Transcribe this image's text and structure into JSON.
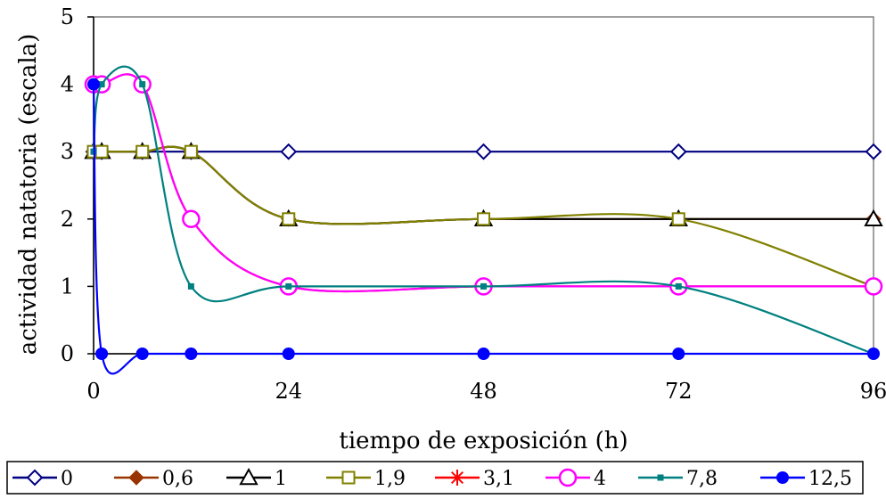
{
  "chart_data": {
    "type": "line",
    "title": "",
    "xlabel": "tiempo de exposición (h)",
    "ylabel": "actividad natatoria (escala)",
    "xlim": [
      0,
      96
    ],
    "ylim": [
      0,
      5
    ],
    "x_ticks": [
      "0",
      "24",
      "48",
      "72",
      "96"
    ],
    "y_ticks": [
      "0",
      "1",
      "2",
      "3",
      "4",
      "5"
    ],
    "grid": false,
    "smoothed": true,
    "legend_position": "bottom",
    "series": [
      {
        "name": "0",
        "color": "#000080",
        "marker": "diamond-open",
        "x": [
          0,
          1,
          6,
          12,
          24,
          48,
          72,
          96
        ],
        "y": [
          3,
          3,
          3,
          3,
          3,
          3,
          3,
          3
        ]
      },
      {
        "name": "0,6",
        "color": "#993300",
        "marker": "diamond-filled",
        "x": [
          0,
          1,
          6,
          12,
          24,
          48,
          72,
          96
        ],
        "y": [
          3,
          3,
          3,
          3,
          2,
          2,
          2,
          2
        ]
      },
      {
        "name": "1",
        "color": "#000000",
        "marker": "triangle-open",
        "x": [
          0,
          1,
          6,
          12,
          24,
          48,
          72,
          96
        ],
        "y": [
          3,
          3,
          3,
          3,
          2,
          2,
          2,
          2
        ]
      },
      {
        "name": "1,9",
        "color": "#808000",
        "marker": "square-open",
        "x": [
          0,
          1,
          6,
          12,
          24,
          48,
          72,
          96
        ],
        "y": [
          3,
          3,
          3,
          3,
          2,
          2,
          2,
          1
        ]
      },
      {
        "name": "3,1",
        "color": "#ff0000",
        "marker": "asterisk",
        "x": [
          0,
          1,
          6,
          12,
          24,
          48,
          72,
          96
        ],
        "y": [
          4,
          4,
          4,
          2,
          1,
          1,
          1,
          1
        ]
      },
      {
        "name": "4",
        "color": "#ff00ff",
        "marker": "circle-open",
        "x": [
          0,
          1,
          6,
          12,
          24,
          48,
          72,
          96
        ],
        "y": [
          4,
          4,
          4,
          2,
          1,
          1,
          1,
          1
        ]
      },
      {
        "name": "7,8",
        "color": "#008080",
        "marker": "square-small",
        "x": [
          0,
          1,
          6,
          12,
          24,
          48,
          72,
          96
        ],
        "y": [
          3,
          4,
          4,
          1,
          1,
          1,
          1,
          0
        ]
      },
      {
        "name": "12,5",
        "color": "#0000ff",
        "marker": "circle-filled",
        "x": [
          0,
          1,
          6,
          12,
          24,
          48,
          72,
          96
        ],
        "y": [
          4,
          0,
          0,
          0,
          0,
          0,
          0,
          0
        ]
      }
    ]
  }
}
